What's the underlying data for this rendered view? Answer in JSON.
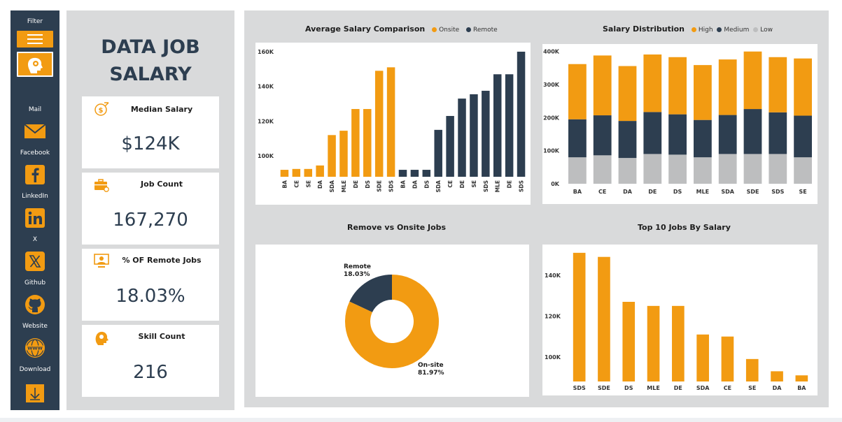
{
  "colors": {
    "orange": "#f29b12",
    "navy": "#2d3e50",
    "gray": "#bdbebf",
    "panel": "#d9dadb"
  },
  "sidebar": {
    "filter_label": "Filter",
    "items": [
      {
        "label": "Mail",
        "icon": "mail-icon"
      },
      {
        "label": "Facebook",
        "icon": "facebook-icon"
      },
      {
        "label": "LinkedIn",
        "icon": "linkedin-icon"
      },
      {
        "label": "X",
        "icon": "x-icon"
      },
      {
        "label": "Github",
        "icon": "github-icon"
      },
      {
        "label": "Website",
        "icon": "globe-icon"
      },
      {
        "label": "Download",
        "icon": "download-icon"
      }
    ]
  },
  "kpi": {
    "title_line1": "DATA JOB",
    "title_line2": "SALARY",
    "cards": [
      {
        "label": "Median Salary",
        "value": "$124K",
        "icon": "money-icon"
      },
      {
        "label": "Job Count",
        "value": "167,270",
        "icon": "briefcase-icon"
      },
      {
        "label": "% OF Remote Jobs",
        "value": "18.03%",
        "icon": "remote-worker-icon"
      },
      {
        "label": "Skill Count",
        "value": "216",
        "icon": "brain-icon"
      }
    ]
  },
  "charts": {
    "avg_salary": {
      "title": "Average Salary Comparison",
      "legend": [
        "Onsite",
        "Remote"
      ]
    },
    "salary_dist": {
      "title": "Salary Distribution",
      "legend": [
        "High",
        "Medium",
        "Low"
      ]
    },
    "remote_onsite": {
      "title": "Remove vs Onsite Jobs",
      "remote_label": "Remote",
      "remote_pct": "18.03%",
      "onsite_label": "On-site",
      "onsite_pct": "81.97%"
    },
    "top10": {
      "title": "Top 10 Jobs By Salary"
    }
  },
  "chart_data": [
    {
      "type": "bar",
      "title": "Average Salary Comparison",
      "y_ticks": [
        "100K",
        "120K",
        "140K",
        "160K"
      ],
      "ylim": [
        88000,
        162000
      ],
      "categories": [
        "BA",
        "CE",
        "SE",
        "DA",
        "SDA",
        "MLE",
        "DE",
        "DS",
        "SDE",
        "SDS"
      ],
      "series": [
        {
          "name": "Onsite",
          "values": [
            92000,
            92500,
            92500,
            94500,
            112000,
            114500,
            127000,
            127000,
            149000,
            151000
          ]
        },
        {
          "name": "Remote",
          "values": [
            92000,
            92000,
            92000,
            115000,
            123000,
            133000,
            135500,
            137500,
            147000,
            147000
          ]
        }
      ],
      "remote_categories": [
        "BA",
        "DA",
        "DS",
        "SDA",
        "CE",
        "DE",
        "SE",
        "SDS",
        "MLE",
        "DE",
        "SDS"
      ],
      "remote_values": [
        92000,
        92000,
        92000,
        115000,
        123000,
        133000,
        135500,
        137500,
        147000,
        147000,
        160000
      ]
    },
    {
      "type": "bar",
      "stacked": true,
      "title": "Salary Distribution",
      "y_ticks": [
        "0K",
        "100K",
        "200K",
        "300K",
        "400K"
      ],
      "ylim": [
        0,
        410000
      ],
      "categories": [
        "BA",
        "CE",
        "DA",
        "DE",
        "DS",
        "MLE",
        "SDA",
        "SDE",
        "SDS",
        "SE"
      ],
      "series": [
        {
          "name": "Low",
          "values": [
            80000,
            86000,
            78000,
            90000,
            88000,
            80000,
            90000,
            90000,
            90000,
            80000
          ]
        },
        {
          "name": "Medium",
          "values": [
            115000,
            121000,
            112000,
            127000,
            122000,
            113000,
            118000,
            136000,
            126000,
            126000
          ]
        },
        {
          "name": "High",
          "values": [
            167000,
            181000,
            166000,
            174000,
            173000,
            166000,
            168000,
            174000,
            167000,
            173000
          ]
        }
      ]
    },
    {
      "type": "pie",
      "title": "Remove vs Onsite Jobs",
      "categories": [
        "Remote",
        "On-site"
      ],
      "values": [
        18.03,
        81.97
      ]
    },
    {
      "type": "bar",
      "title": "Top 10 Jobs By Salary",
      "y_ticks": [
        "100K",
        "120K",
        "140K"
      ],
      "ylim": [
        88000,
        153000
      ],
      "categories": [
        "SDS",
        "SDE",
        "DS",
        "MLE",
        "DE",
        "SDA",
        "CE",
        "SE",
        "DA",
        "BA"
      ],
      "values": [
        151000,
        149000,
        127000,
        125000,
        125000,
        111000,
        110000,
        99000,
        93000,
        91000
      ]
    }
  ]
}
